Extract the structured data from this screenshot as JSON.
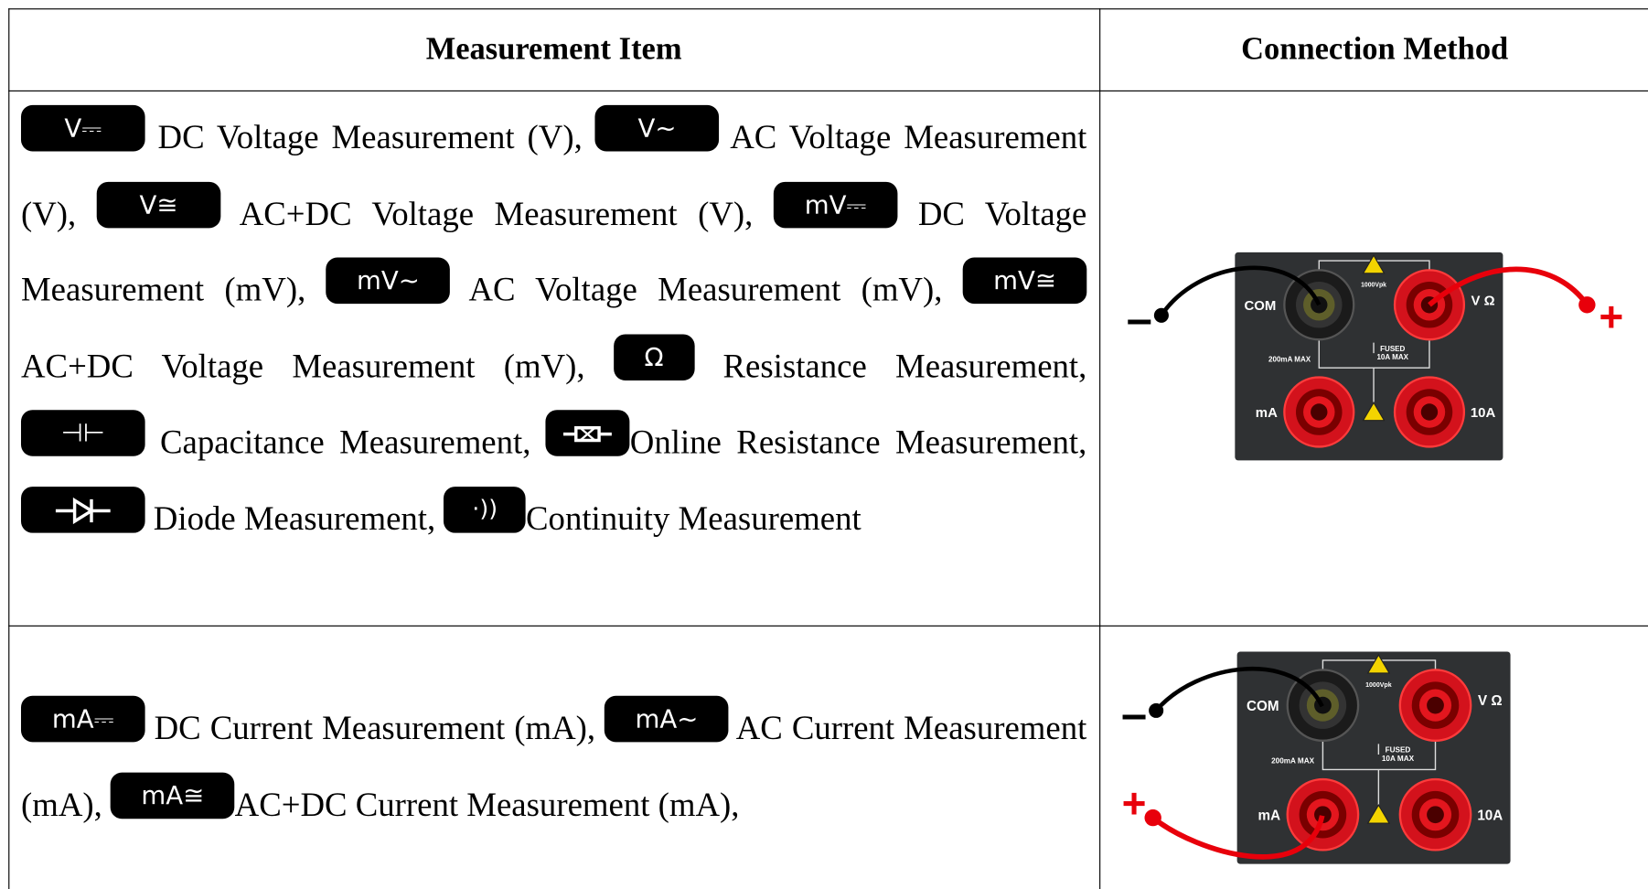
{
  "header": {
    "columns": [
      "Measurement Item",
      "Connection Method"
    ]
  },
  "rows": [
    {
      "items": [
        {
          "icon": "V⎓",
          "text": "DC Voltage Measurement (V),"
        },
        {
          "icon": "V~",
          "text": "AC Voltage Measurement (V),"
        },
        {
          "icon": "V≅",
          "text": "AC+DC Voltage Measurement (V),"
        },
        {
          "icon": "mV⎓",
          "text": "DC Voltage Measurement (mV),"
        },
        {
          "icon": "mV~",
          "text": "AC Voltage Measurement (mV),"
        },
        {
          "icon": "mV≅",
          "text": "AC+DC Voltage Measurement (mV),"
        },
        {
          "icon": "Ω",
          "text": "Resistance Measurement,"
        },
        {
          "icon": "⊣⊢",
          "text": "Capacitance Measurement,"
        },
        {
          "text": "Online Resistance Measurement,"
        },
        {
          "text": "Diode Measurement,"
        },
        {
          "icon": "·))",
          "text": "Continuity Measurement"
        }
      ]
    },
    {
      "items": [
        {
          "icon": "mA⎓",
          "text": "DC Current Measurement (mA),"
        },
        {
          "icon": "mA~",
          "text": "AC Current Measurement (mA),"
        },
        {
          "icon": "mA≅",
          "text": "AC+DC Current Measurement (mA),"
        }
      ]
    }
  ],
  "panel": {
    "com": "COM",
    "v_ohm": "V Ω",
    "ma": "mA",
    "a10": "10A",
    "ma_max": "200mA MAX",
    "fused": "FUSED",
    "fused_max": "10A MAX",
    "vpk": "1000Vpk",
    "minus": "–",
    "plus": "+"
  }
}
